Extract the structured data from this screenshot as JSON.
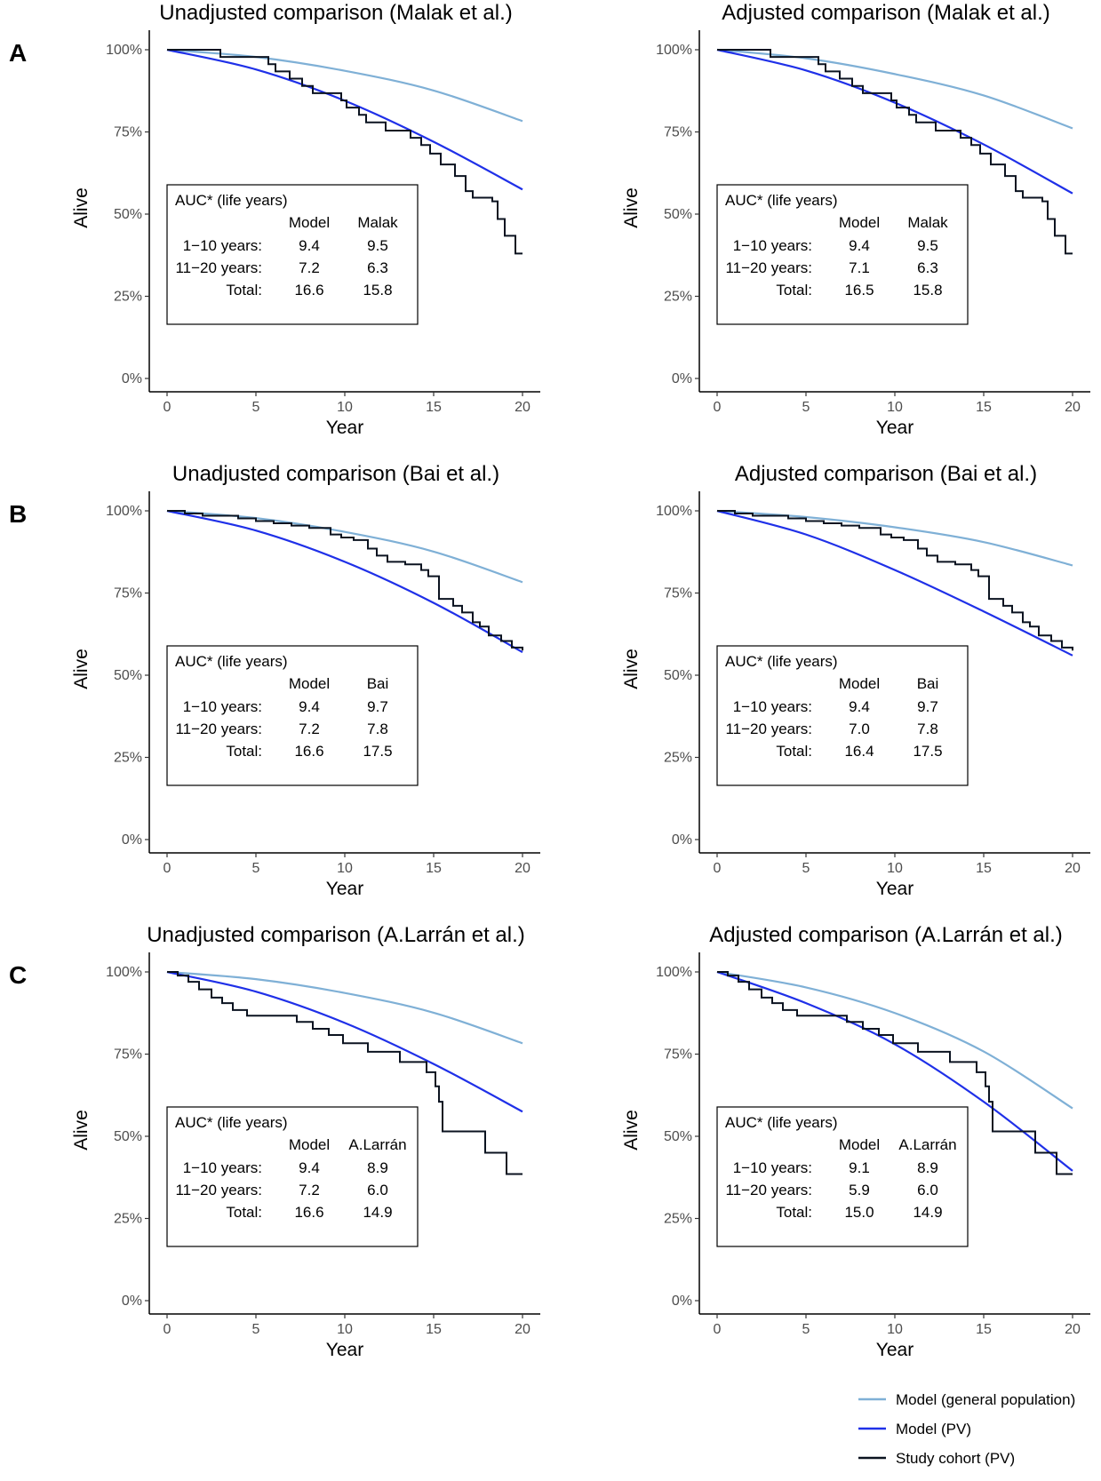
{
  "rows": [
    {
      "letter": "A",
      "study": "Malak"
    },
    {
      "letter": "B",
      "study": "Bai"
    },
    {
      "letter": "C",
      "study": "A.Larrán"
    }
  ],
  "legend": [
    {
      "label": "Model (general population)",
      "color": "#7FB0D6"
    },
    {
      "label": "Model (PV)",
      "color": "#1F30E8"
    },
    {
      "label": "Study cohort (PV)",
      "color": "#0B1320"
    }
  ],
  "chart_data": [
    {
      "type": "line",
      "title": "Unadjusted comparison (Malak et al.)",
      "xlabel": "Year",
      "ylabel": "Alive",
      "xlim": [
        0,
        20
      ],
      "ylim": [
        0,
        100
      ],
      "x_ticks": [
        "0",
        "5",
        "10",
        "15",
        "20"
      ],
      "y_ticks": [
        "0%",
        "25%",
        "50%",
        "75%",
        "100%"
      ],
      "series": [
        {
          "name": "Model (general population)",
          "x": [
            0,
            5,
            10,
            15,
            20
          ],
          "values": [
            100,
            97.8,
            93.6,
            87.6,
            78.3
          ]
        },
        {
          "name": "Model (PV)",
          "x": [
            0,
            5,
            10,
            15,
            20
          ],
          "values": [
            100,
            94,
            84.5,
            72,
            57.5
          ]
        },
        {
          "name": "Study cohort (PV)",
          "step": true,
          "x": [
            0,
            3,
            5.7,
            6.1,
            6.9,
            7.6,
            8.2,
            8.8,
            9.8,
            10.1,
            10.8,
            11.2,
            12.3,
            13.1,
            13.7,
            14.3,
            14.8,
            15.4,
            16.2,
            16.8,
            17.2,
            18.3,
            18.6,
            19,
            19.6,
            20
          ],
          "values": [
            100,
            97.8,
            95.6,
            93.4,
            91.2,
            89,
            86.8,
            86.8,
            84.6,
            82.4,
            80.2,
            77.9,
            75.4,
            75.4,
            73.2,
            71,
            68.4,
            65.1,
            61.6,
            57,
            55,
            53.9,
            48.5,
            43.4,
            38,
            38
          ]
        }
      ],
      "table": {
        "header": "AUC* (life years)",
        "columns": [
          "Model",
          "Malak"
        ],
        "rows": [
          {
            "label": "1−10 years:",
            "values": [
              "9.4",
              "9.5"
            ]
          },
          {
            "label": "11−20 years:",
            "values": [
              "7.2",
              "6.3"
            ]
          },
          {
            "label": "Total:",
            "values": [
              "16.6",
              "15.8"
            ]
          }
        ]
      }
    },
    {
      "type": "line",
      "title": "Adjusted comparison (Malak et al.)",
      "xlabel": "Year",
      "ylabel": "Alive",
      "xlim": [
        0,
        20
      ],
      "ylim": [
        0,
        100
      ],
      "x_ticks": [
        "0",
        "5",
        "10",
        "15",
        "20"
      ],
      "y_ticks": [
        "0%",
        "25%",
        "50%",
        "75%",
        "100%"
      ],
      "series": [
        {
          "name": "Model (general population)",
          "x": [
            0,
            5,
            10,
            15,
            20
          ],
          "values": [
            100,
            97.4,
            92.6,
            86.1,
            76.1
          ]
        },
        {
          "name": "Model (PV)",
          "x": [
            0,
            5,
            10,
            15,
            20
          ],
          "values": [
            100,
            93.7,
            83.9,
            71.2,
            56.3
          ]
        },
        {
          "name": "Study cohort (PV)",
          "step": true,
          "x": [
            0,
            3,
            5.7,
            6.1,
            6.9,
            7.6,
            8.2,
            8.8,
            9.8,
            10.1,
            10.8,
            11.2,
            12.3,
            13.1,
            13.7,
            14.3,
            14.8,
            15.4,
            16.2,
            16.8,
            17.2,
            18.3,
            18.6,
            19,
            19.6,
            20
          ],
          "values": [
            100,
            97.8,
            95.6,
            93.4,
            91.2,
            89,
            86.8,
            86.8,
            84.6,
            82.4,
            80.2,
            77.9,
            75.4,
            75.4,
            73.2,
            71,
            68.4,
            65.1,
            61.6,
            57,
            55,
            53.9,
            48.5,
            43.4,
            38,
            38
          ]
        }
      ],
      "table": {
        "header": "AUC* (life years)",
        "columns": [
          "Model",
          "Malak"
        ],
        "rows": [
          {
            "label": "1−10 years:",
            "values": [
              "9.4",
              "9.5"
            ]
          },
          {
            "label": "11−20 years:",
            "values": [
              "7.1",
              "6.3"
            ]
          },
          {
            "label": "Total:",
            "values": [
              "16.5",
              "15.8"
            ]
          }
        ]
      }
    },
    {
      "type": "line",
      "title": "Unadjusted comparison (Bai et al.)",
      "xlabel": "Year",
      "ylabel": "Alive",
      "xlim": [
        0,
        20
      ],
      "ylim": [
        0,
        100
      ],
      "x_ticks": [
        "0",
        "5",
        "10",
        "15",
        "20"
      ],
      "y_ticks": [
        "0%",
        "25%",
        "50%",
        "75%",
        "100%"
      ],
      "series": [
        {
          "name": "Model (general population)",
          "x": [
            0,
            5,
            10,
            15,
            20
          ],
          "values": [
            100,
            97.8,
            93.6,
            87.6,
            78.3
          ]
        },
        {
          "name": "Model (PV)",
          "x": [
            0,
            5,
            10,
            15,
            20
          ],
          "values": [
            100,
            94,
            84.5,
            72,
            57
          ]
        },
        {
          "name": "Study cohort (PV)",
          "step": true,
          "x": [
            0,
            1,
            2,
            4,
            5,
            6,
            7,
            8,
            9,
            9.2,
            9.8,
            10.5,
            11.3,
            11.8,
            12.4,
            13.4,
            14.3,
            14.7,
            15.3,
            16.1,
            16.6,
            17.2,
            17.6,
            18.1,
            18.8,
            19.4,
            20
          ],
          "values": [
            100,
            99.2,
            98.5,
            97.7,
            96.9,
            96.2,
            95.5,
            94.8,
            94.8,
            92.8,
            91.9,
            91.1,
            88.5,
            86.4,
            84.5,
            83.7,
            82,
            80.1,
            73.2,
            71.1,
            69.1,
            66.1,
            64.8,
            62.1,
            60.4,
            58.4,
            57.5
          ]
        }
      ],
      "table": {
        "header": "AUC* (life years)",
        "columns": [
          "Model",
          "Bai"
        ],
        "rows": [
          {
            "label": "1−10 years:",
            "values": [
              "9.4",
              "9.7"
            ]
          },
          {
            "label": "11−20 years:",
            "values": [
              "7.2",
              "7.8"
            ]
          },
          {
            "label": "Total:",
            "values": [
              "16.6",
              "17.5"
            ]
          }
        ]
      }
    },
    {
      "type": "line",
      "title": "Adjusted comparison (Bai et al.)",
      "xlabel": "Year",
      "ylabel": "Alive",
      "xlim": [
        0,
        20
      ],
      "ylim": [
        0,
        100
      ],
      "x_ticks": [
        "0",
        "5",
        "10",
        "15",
        "20"
      ],
      "y_ticks": [
        "0%",
        "25%",
        "50%",
        "75%",
        "100%"
      ],
      "series": [
        {
          "name": "Model (general population)",
          "x": [
            0,
            5,
            10,
            15,
            20
          ],
          "values": [
            100,
            98.1,
            95,
            90.5,
            83.4
          ]
        },
        {
          "name": "Model (PV)",
          "x": [
            0,
            5,
            10,
            15,
            20
          ],
          "values": [
            100,
            92.8,
            82,
            69.4,
            56
          ]
        },
        {
          "name": "Study cohort (PV)",
          "step": true,
          "x": [
            0,
            1,
            2,
            4,
            5,
            6,
            7,
            8,
            9,
            9.2,
            9.8,
            10.5,
            11.3,
            11.8,
            12.4,
            13.4,
            14.3,
            14.7,
            15.3,
            16.1,
            16.6,
            17.2,
            17.6,
            18.1,
            18.8,
            19.4,
            20
          ],
          "values": [
            100,
            99.2,
            98.5,
            97.7,
            96.9,
            96.2,
            95.5,
            94.8,
            94.8,
            92.8,
            91.9,
            91.1,
            88.5,
            86.4,
            84.5,
            83.7,
            82,
            80.1,
            73.2,
            71.1,
            69.1,
            66.1,
            64.8,
            62.1,
            60.4,
            58.4,
            57.5
          ]
        }
      ],
      "table": {
        "header": "AUC* (life years)",
        "columns": [
          "Model",
          "Bai"
        ],
        "rows": [
          {
            "label": "1−10 years:",
            "values": [
              "9.4",
              "9.7"
            ]
          },
          {
            "label": "11−20 years:",
            "values": [
              "7.0",
              "7.8"
            ]
          },
          {
            "label": "Total:",
            "values": [
              "16.4",
              "17.5"
            ]
          }
        ]
      }
    },
    {
      "type": "line",
      "title": "Unadjusted comparison (A.Larrán et al.)",
      "xlabel": "Year",
      "ylabel": "Alive",
      "xlim": [
        0,
        20
      ],
      "ylim": [
        0,
        100
      ],
      "x_ticks": [
        "0",
        "5",
        "10",
        "15",
        "20"
      ],
      "y_ticks": [
        "0%",
        "25%",
        "50%",
        "75%",
        "100%"
      ],
      "series": [
        {
          "name": "Model (general population)",
          "x": [
            0,
            5,
            10,
            15,
            20
          ],
          "values": [
            100,
            97.8,
            93.6,
            87.6,
            78.3
          ]
        },
        {
          "name": "Model (PV)",
          "x": [
            0,
            5,
            10,
            15,
            20
          ],
          "values": [
            100,
            94,
            84.5,
            72,
            57.5
          ]
        },
        {
          "name": "Study cohort (PV)",
          "step": true,
          "x": [
            0,
            0.6,
            1.2,
            1.8,
            2.5,
            3.1,
            3.7,
            4.5,
            7.3,
            8.2,
            9.1,
            9.9,
            11.3,
            13.1,
            14.6,
            15.1,
            15.3,
            15.5,
            17.9,
            19.1,
            20
          ],
          "values": [
            100,
            98.9,
            97,
            94.7,
            92.2,
            90.5,
            88.4,
            86.7,
            84.8,
            82.7,
            80.8,
            78.3,
            75.7,
            72.6,
            69.5,
            65.2,
            60.5,
            51.5,
            45,
            38.5,
            38.5
          ]
        }
      ],
      "table": {
        "header": "AUC* (life years)",
        "columns": [
          "Model",
          "A.Larrán"
        ],
        "rows": [
          {
            "label": "1−10 years:",
            "values": [
              "9.4",
              "8.9"
            ]
          },
          {
            "label": "11−20 years:",
            "values": [
              "7.2",
              "6.0"
            ]
          },
          {
            "label": "Total:",
            "values": [
              "16.6",
              "14.9"
            ]
          }
        ]
      }
    },
    {
      "type": "line",
      "title": "Adjusted comparison (A.Larrán et al.)",
      "xlabel": "Year",
      "ylabel": "Alive",
      "xlim": [
        0,
        20
      ],
      "ylim": [
        0,
        100
      ],
      "x_ticks": [
        "0",
        "5",
        "10",
        "15",
        "20"
      ],
      "y_ticks": [
        "0%",
        "25%",
        "50%",
        "75%",
        "100%"
      ],
      "series": [
        {
          "name": "Model (general population)",
          "x": [
            0,
            5,
            10,
            15,
            20
          ],
          "values": [
            100,
            95.3,
            87.5,
            75.8,
            58.5
          ]
        },
        {
          "name": "Model (PV)",
          "x": [
            0,
            5,
            10,
            15,
            20
          ],
          "values": [
            100,
            90.5,
            78,
            60.5,
            39.5
          ]
        },
        {
          "name": "Study cohort (PV)",
          "step": true,
          "x": [
            0,
            0.6,
            1.2,
            1.8,
            2.5,
            3.1,
            3.7,
            4.5,
            7.3,
            8.2,
            9.1,
            9.9,
            11.3,
            13.1,
            14.6,
            15.1,
            15.3,
            15.5,
            17.9,
            19.1,
            20
          ],
          "values": [
            100,
            98.9,
            97,
            94.7,
            92.2,
            90.5,
            88.4,
            86.7,
            84.8,
            82.7,
            80.8,
            78.3,
            75.7,
            72.6,
            69.5,
            65.2,
            60.5,
            51.5,
            45,
            38.5,
            38.5
          ]
        }
      ],
      "table": {
        "header": "AUC* (life years)",
        "columns": [
          "Model",
          "A.Larrán"
        ],
        "rows": [
          {
            "label": "1−10 years:",
            "values": [
              "9.1",
              "8.9"
            ]
          },
          {
            "label": "11−20 years:",
            "values": [
              "5.9",
              "6.0"
            ]
          },
          {
            "label": "Total:",
            "values": [
              "15.0",
              "14.9"
            ]
          }
        ]
      }
    }
  ]
}
